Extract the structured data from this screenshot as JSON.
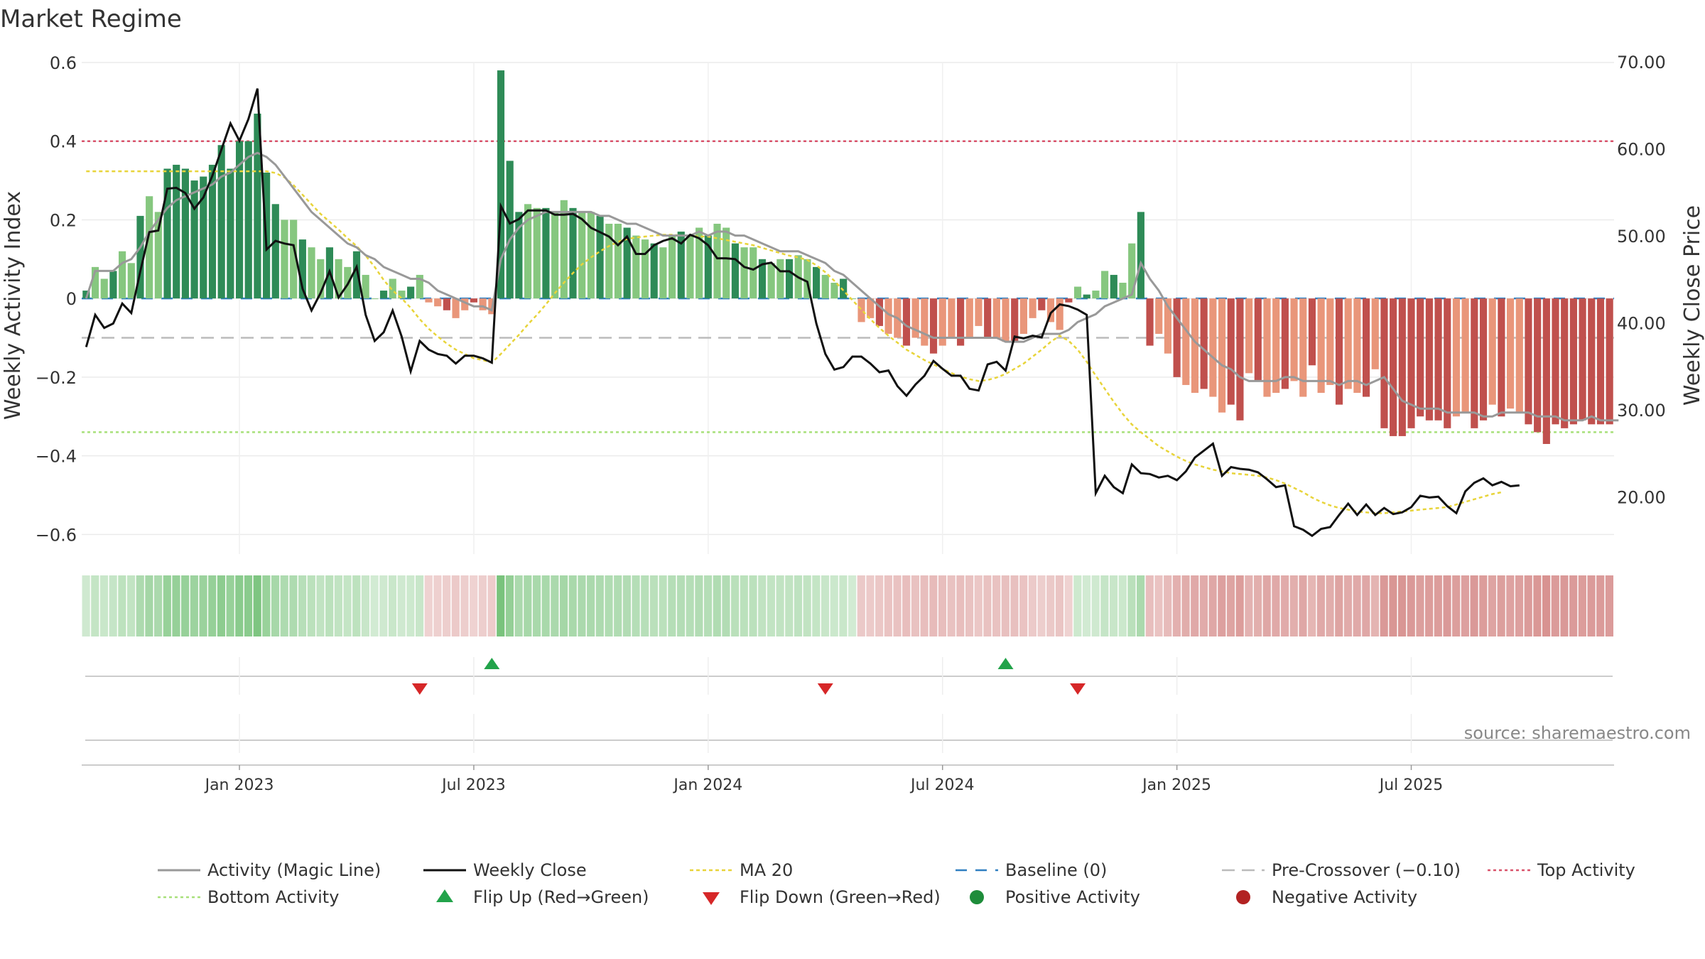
{
  "chart_data": {
    "type": "bar+line",
    "title": "Market Regime",
    "ylabel": "Weekly Activity Index",
    "y2label": "Weekly Close Price",
    "ylim": [
      -0.65,
      0.6
    ],
    "y_ticks": [
      "0.6",
      "0.4",
      "0.2",
      "0",
      "−0.2",
      "−0.4",
      "−0.6"
    ],
    "y_tick_values": [
      0.6,
      0.4,
      0.2,
      0,
      -0.2,
      -0.4,
      -0.6
    ],
    "y2lim": [
      13.5,
      70
    ],
    "y2_ticks": [
      "70.00",
      "60.00",
      "50.00",
      "40.00",
      "30.00",
      "20.00"
    ],
    "y2_tick_values": [
      70,
      60,
      50,
      40,
      30,
      20
    ],
    "x_ticks": [
      "Jan 2023",
      "Jul 2023",
      "Jan 2024",
      "Jul 2024",
      "Jan 2025",
      "Jul 2025"
    ],
    "x_tick_weeks": [
      17,
      43,
      69,
      95,
      121,
      147
    ],
    "reference_lines": {
      "top_activity": 0.4,
      "bottom_activity": -0.34,
      "pre_crossover": -0.1,
      "baseline": 0
    },
    "activity_bars": [
      0.02,
      0.08,
      0.05,
      0.07,
      0.12,
      0.09,
      0.21,
      0.26,
      0.22,
      0.33,
      0.34,
      0.33,
      0.3,
      0.31,
      0.34,
      0.39,
      0.33,
      0.4,
      0.4,
      0.47,
      0.32,
      0.24,
      0.2,
      0.2,
      0.15,
      0.13,
      0.1,
      0.13,
      0.1,
      0.08,
      0.12,
      0.06,
      0.0,
      0.02,
      0.05,
      0.02,
      0.03,
      0.06,
      -0.01,
      -0.02,
      -0.03,
      -0.05,
      -0.03,
      -0.01,
      -0.03,
      -0.04,
      0.58,
      0.35,
      0.22,
      0.24,
      0.23,
      0.23,
      0.22,
      0.25,
      0.23,
      0.22,
      0.22,
      0.21,
      0.19,
      0.19,
      0.18,
      0.16,
      0.15,
      0.14,
      0.13,
      0.16,
      0.17,
      0.16,
      0.18,
      0.16,
      0.19,
      0.18,
      0.14,
      0.13,
      0.13,
      0.1,
      0.09,
      0.1,
      0.1,
      0.11,
      0.1,
      0.08,
      0.06,
      0.04,
      0.05,
      0.0,
      -0.06,
      -0.05,
      -0.07,
      -0.09,
      -0.1,
      -0.12,
      -0.1,
      -0.12,
      -0.14,
      -0.12,
      -0.1,
      -0.12,
      -0.1,
      -0.07,
      -0.1,
      -0.1,
      -0.11,
      -0.11,
      -0.09,
      -0.05,
      -0.03,
      -0.06,
      -0.08,
      -0.01,
      0.03,
      0.01,
      0.02,
      0.07,
      0.06,
      0.04,
      0.14,
      0.22,
      -0.12,
      -0.09,
      -0.14,
      -0.2,
      -0.22,
      -0.24,
      -0.23,
      -0.25,
      -0.29,
      -0.27,
      -0.31,
      -0.19,
      -0.21,
      -0.25,
      -0.24,
      -0.23,
      -0.21,
      -0.25,
      -0.17,
      -0.24,
      -0.22,
      -0.27,
      -0.23,
      -0.24,
      -0.25,
      -0.18,
      -0.33,
      -0.35,
      -0.35,
      -0.33,
      -0.3,
      -0.31,
      -0.31,
      -0.33,
      -0.3,
      -0.29,
      -0.33,
      -0.31,
      -0.27,
      -0.3,
      -0.28,
      -0.29,
      -0.32,
      -0.34,
      -0.37,
      -0.32,
      -0.33,
      -0.32,
      -0.31,
      -0.32,
      -0.32,
      -0.32
    ],
    "activity_magic_line": [
      0.0,
      0.07,
      0.07,
      0.07,
      0.09,
      0.1,
      0.13,
      0.17,
      0.2,
      0.23,
      0.25,
      0.26,
      0.27,
      0.28,
      0.29,
      0.31,
      0.32,
      0.34,
      0.36,
      0.37,
      0.36,
      0.34,
      0.31,
      0.28,
      0.25,
      0.22,
      0.2,
      0.18,
      0.16,
      0.14,
      0.13,
      0.11,
      0.1,
      0.08,
      0.07,
      0.06,
      0.05,
      0.05,
      0.04,
      0.02,
      0.01,
      0.0,
      -0.01,
      -0.02,
      -0.02,
      -0.03,
      0.1,
      0.15,
      0.18,
      0.2,
      0.21,
      0.22,
      0.22,
      0.22,
      0.22,
      0.22,
      0.22,
      0.21,
      0.21,
      0.2,
      0.19,
      0.19,
      0.18,
      0.17,
      0.16,
      0.16,
      0.16,
      0.16,
      0.17,
      0.16,
      0.17,
      0.17,
      0.16,
      0.16,
      0.15,
      0.14,
      0.13,
      0.12,
      0.12,
      0.12,
      0.11,
      0.1,
      0.09,
      0.07,
      0.06,
      0.04,
      0.02,
      0.0,
      -0.02,
      -0.04,
      -0.05,
      -0.07,
      -0.08,
      -0.09,
      -0.1,
      -0.1,
      -0.1,
      -0.1,
      -0.1,
      -0.1,
      -0.1,
      -0.1,
      -0.11,
      -0.11,
      -0.11,
      -0.1,
      -0.09,
      -0.09,
      -0.09,
      -0.08,
      -0.06,
      -0.05,
      -0.04,
      -0.02,
      -0.01,
      0.0,
      0.01,
      0.09,
      0.05,
      0.02,
      -0.02,
      -0.05,
      -0.08,
      -0.11,
      -0.13,
      -0.15,
      -0.17,
      -0.18,
      -0.2,
      -0.21,
      -0.21,
      -0.21,
      -0.21,
      -0.2,
      -0.2,
      -0.21,
      -0.21,
      -0.21,
      -0.21,
      -0.22,
      -0.21,
      -0.21,
      -0.22,
      -0.21,
      -0.2,
      -0.23,
      -0.26,
      -0.27,
      -0.28,
      -0.28,
      -0.28,
      -0.29,
      -0.29,
      -0.29,
      -0.29,
      -0.3,
      -0.3,
      -0.29,
      -0.29,
      -0.29,
      -0.29,
      -0.3,
      -0.3,
      -0.3,
      -0.31,
      -0.31,
      -0.31,
      -0.3,
      -0.31,
      -0.31,
      -0.31
    ],
    "weekly_close": [
      37.3,
      41.0,
      39.5,
      40.0,
      42.3,
      41.2,
      46.0,
      50.5,
      50.7,
      55.5,
      55.6,
      55.0,
      53.2,
      54.5,
      57.0,
      60.0,
      63.0,
      61.0,
      63.5,
      67.0,
      48.5,
      49.5,
      49.2,
      49.0,
      44.0,
      41.5,
      43.5,
      46.0,
      43.0,
      44.5,
      46.5,
      41.0,
      38.0,
      39.0,
      41.5,
      38.5,
      34.5,
      38.0,
      37.0,
      36.5,
      36.3,
      35.4,
      36.3,
      36.3,
      36.0,
      35.5,
      53.5,
      51.5,
      52.0,
      53.0,
      53.0,
      53.0,
      52.5,
      52.5,
      52.6,
      52.0,
      51.0,
      50.5,
      50.0,
      49.0,
      50.0,
      48.0,
      48.0,
      49.0,
      49.5,
      49.8,
      49.2,
      50.2,
      49.8,
      49.0,
      47.5,
      47.5,
      47.4,
      46.5,
      46.2,
      46.8,
      47.0,
      46.0,
      46.0,
      45.3,
      44.8,
      40.0,
      36.5,
      34.7,
      35.0,
      36.2,
      36.2,
      35.4,
      34.4,
      34.6,
      32.8,
      31.7,
      33.0,
      34.0,
      35.7,
      34.8,
      34.0,
      34.0,
      32.5,
      32.3,
      35.3,
      35.6,
      34.6,
      38.5,
      38.3,
      38.6,
      38.4,
      41.2,
      42.2,
      42.0,
      41.6,
      41.0,
      20.5,
      22.5,
      21.2,
      20.5,
      23.8,
      22.8,
      22.7,
      22.3,
      22.5,
      22.0,
      23.0,
      24.6,
      25.4,
      26.2,
      22.5,
      23.5,
      23.3,
      23.2,
      22.9,
      22.1,
      21.2,
      21.4,
      16.7,
      16.3,
      15.6,
      16.4,
      16.6,
      18.0,
      19.3,
      18.0,
      19.2,
      18.0,
      18.8,
      18.1,
      18.3,
      18.9,
      20.2,
      20.0,
      20.1,
      19.0,
      18.2,
      20.7,
      21.7,
      22.2,
      21.4,
      21.8,
      21.3,
      21.4
    ],
    "ma20": [
      57.5,
      57.5,
      57.5,
      57.5,
      57.5,
      57.5,
      57.5,
      57.5,
      57.5,
      57.5,
      57.5,
      57.5,
      57.5,
      57.5,
      57.5,
      57.5,
      57.5,
      57.5,
      57.5,
      57.5,
      57.5,
      57.3,
      56.8,
      55.9,
      54.8,
      53.7,
      52.6,
      51.7,
      50.8,
      49.8,
      48.9,
      47.8,
      46.5,
      45.0,
      43.8,
      42.9,
      41.8,
      40.5,
      39.4,
      38.5,
      37.7,
      37.0,
      36.5,
      36.0,
      35.8,
      35.5,
      36.5,
      37.6,
      38.7,
      39.9,
      41.0,
      42.2,
      43.5,
      44.7,
      45.8,
      46.8,
      47.6,
      48.3,
      48.9,
      49.4,
      49.7,
      49.9,
      50.0,
      50.1,
      50.2,
      50.2,
      50.1,
      50.1,
      50.0,
      50.0,
      49.8,
      49.6,
      49.4,
      49.2,
      49.0,
      48.7,
      48.4,
      48.1,
      47.8,
      47.6,
      47.3,
      46.7,
      45.9,
      44.9,
      43.8,
      42.7,
      41.6,
      40.5,
      39.5,
      38.6,
      37.8,
      37.0,
      36.4,
      35.8,
      35.3,
      34.8,
      34.3,
      33.9,
      33.6,
      33.4,
      33.5,
      33.8,
      34.2,
      34.8,
      35.4,
      36.2,
      37.0,
      37.9,
      38.6,
      38.0,
      37.0,
      35.6,
      34.0,
      32.5,
      31.0,
      29.6,
      28.4,
      27.5,
      26.7,
      25.9,
      25.3,
      24.7,
      24.2,
      23.8,
      23.5,
      23.2,
      23.0,
      22.8,
      22.7,
      22.6,
      22.5,
      22.3,
      22.0,
      21.6,
      21.1,
      20.6,
      20.0,
      19.5,
      19.1,
      18.8,
      18.6,
      18.4,
      18.3,
      18.2,
      18.2,
      18.3,
      18.4,
      18.5,
      18.6,
      18.7,
      18.8,
      18.9,
      19.2,
      19.5,
      19.8,
      20.1,
      20.4,
      20.6
    ],
    "flip_up_weeks": [
      45,
      102
    ],
    "flip_down_weeks": [
      37,
      82,
      110
    ],
    "legend": [
      "Activity (Magic Line)",
      "Weekly Close",
      "MA 20",
      "Baseline (0)",
      "Pre-Crossover (−0.10)",
      "Top Activity",
      "Bottom Activity",
      "Flip Up (Red→Green)",
      "Flip Down (Green→Red)",
      "Positive Activity",
      "Negative Activity"
    ]
  },
  "source": "source: sharemaestro.com",
  "colors": {
    "pos_dark": "#2e8b57",
    "pos_light": "#86c77f",
    "neg_dark": "#c0504d",
    "neg_light": "#e9967a",
    "magic": "#999999",
    "close": "#111111",
    "ma": "#e8d43a",
    "baseline": "#2f7fc1",
    "pre": "#bbbbbb",
    "top": "#d9536b",
    "bottom": "#a8e07a",
    "flip_up": "#22a34a",
    "flip_down": "#d62728",
    "pos_dot": "#1e8c3a",
    "neg_dot": "#b22222"
  }
}
